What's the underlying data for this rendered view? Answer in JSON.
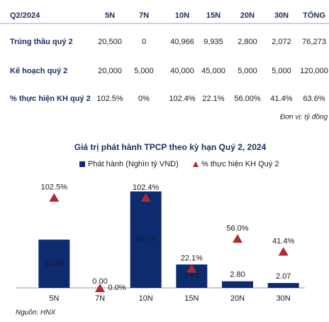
{
  "table": {
    "header": [
      "Q2/2024",
      "5N",
      "7N",
      "10N",
      "15N",
      "20N",
      "30N",
      "TỔNG"
    ],
    "rows": [
      [
        "Trúng thầu quý 2",
        "20,500",
        "0",
        "40,966",
        "9,935",
        "2,800",
        "2,072",
        "76,273"
      ],
      [
        "Kế hoạch quý 2",
        "20,000",
        "5,000",
        "40,000",
        "45,000",
        "5,000",
        "5,000",
        "120,000"
      ],
      [
        "% thực hiện KH quý 2",
        "102.5%",
        "0%",
        "102.4%",
        "22.1%",
        "56.00%",
        "41.4%",
        "63.6%"
      ]
    ],
    "unit_note": "Đơn vị: tỷ đồng"
  },
  "chart_data": {
    "type": "bar",
    "title": "Giá trị phát hành TPCP theo kỳ hạn Quý 2, 2024",
    "categories": [
      "5N",
      "7N",
      "10N",
      "15N",
      "20N",
      "30N"
    ],
    "series": [
      {
        "name": "Phát hành (Nghìn tỷ VND)",
        "color": "#0d2b6e",
        "values": [
          20.5,
          0,
          40.97,
          9.94,
          2.8,
          2.07
        ],
        "value_labels": [
          "20.50",
          "0.00",
          "40.97",
          "9.94",
          "2.80",
          "2.07"
        ]
      },
      {
        "name": "% thực hiện KH Quý 2",
        "color": "#b22a2e",
        "axis": "y2",
        "marker": "triangle",
        "values": [
          102.5,
          0,
          102.4,
          22.1,
          56.0,
          41.4
        ],
        "value_labels": [
          "102.5%",
          "0.0%",
          "102.4%",
          "22.1%",
          "56.0%",
          "41.4%"
        ]
      }
    ],
    "ylim": [
      0,
      45
    ],
    "y2lim": [
      0,
      120
    ],
    "grid": false
  },
  "source": "Nguồn: HNX"
}
